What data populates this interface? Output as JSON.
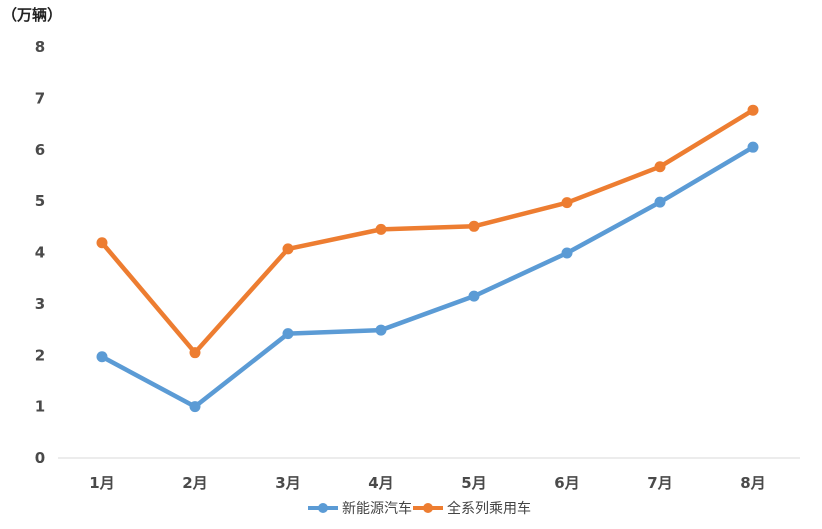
{
  "chart_data": {
    "type": "line",
    "unit_label": "（万辆）",
    "categories": [
      "1月",
      "2月",
      "3月",
      "4月",
      "5月",
      "6月",
      "7月",
      "8月"
    ],
    "ylim": [
      0,
      8
    ],
    "yticks": [
      "0",
      "1",
      "2",
      "3",
      "4",
      "5",
      "6",
      "7",
      "8"
    ],
    "grid": false,
    "legend_position": "bottom",
    "series": [
      {
        "name": "新能源汽车",
        "color": "#5B9BD5",
        "values": [
          1.97,
          1.0,
          2.42,
          2.49,
          3.15,
          3.99,
          4.98,
          6.05
        ]
      },
      {
        "name": "全系列乘用车",
        "color": "#ED7D31",
        "values": [
          4.19,
          2.05,
          4.07,
          4.45,
          4.51,
          4.97,
          5.67,
          6.77
        ]
      }
    ]
  }
}
